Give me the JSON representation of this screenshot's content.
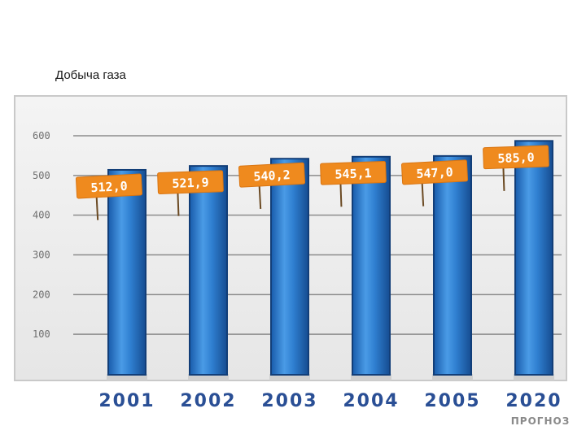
{
  "page": {
    "title": "Добыча газа"
  },
  "chart_data": {
    "type": "bar",
    "title": "",
    "xlabel": "",
    "ylabel": "",
    "ylim": [
      0,
      600
    ],
    "yticks": [
      100,
      200,
      300,
      400,
      500,
      600
    ],
    "ytick_labels": [
      "100",
      "200",
      "300",
      "400",
      "500",
      "600"
    ],
    "categories": [
      "2001",
      "2002",
      "2003",
      "2004",
      "2005",
      "2020"
    ],
    "values": [
      512.0,
      521.9,
      540.2,
      545.1,
      547.0,
      585.0
    ],
    "value_labels": [
      "512,0",
      "521,9",
      "540,2",
      "545,1",
      "547,0",
      "585,0"
    ],
    "category_notes": [
      "",
      "",
      "",
      "",
      "",
      "ПРОГНОЗ"
    ],
    "grid": true,
    "colors": {
      "bar": "#2f7fd0",
      "label_box": "#ef8a1e",
      "plot_background": "#ebebeb",
      "category_text": "#2a4f95"
    }
  }
}
